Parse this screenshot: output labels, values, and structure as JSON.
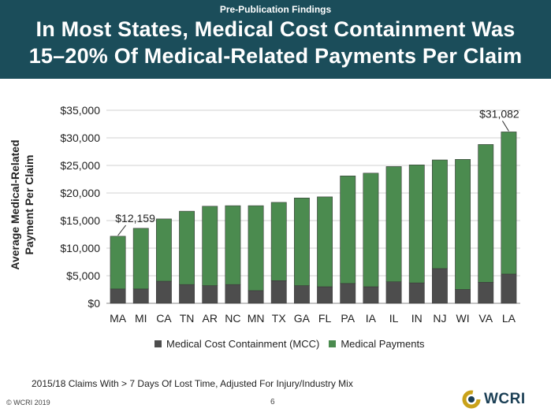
{
  "header": {
    "subtitle": "Pre-Publication Findings",
    "title_line1": "In Most States, Medical Cost Containment Was",
    "title_line2": "15–20% Of Medical-Related Payments Per Claim"
  },
  "colors": {
    "header_bg": "#1b4d5a",
    "mcc": "#4d4d4d",
    "medical": "#4b8b4f"
  },
  "chart_data": {
    "type": "bar",
    "stacked": true,
    "ylabel": "Average Medical-Related Payment Per Claim",
    "ylim": [
      0,
      35000
    ],
    "yticks": [
      "$0",
      "$5,000",
      "$10,000",
      "$15,000",
      "$20,000",
      "$25,000",
      "$30,000",
      "$35,000"
    ],
    "ytick_values": [
      0,
      5000,
      10000,
      15000,
      20000,
      25000,
      30000,
      35000
    ],
    "grid": true,
    "legend_position": "bottom",
    "categories": [
      "MA",
      "MI",
      "CA",
      "TN",
      "AR",
      "NC",
      "MN",
      "TX",
      "GA",
      "FL",
      "PA",
      "IA",
      "IL",
      "IN",
      "NJ",
      "WI",
      "VA",
      "LA"
    ],
    "series": [
      {
        "name": "Medical Cost Containment (MCC)",
        "values": [
          2600,
          2600,
          4000,
          3400,
          3200,
          3400,
          2300,
          4100,
          3200,
          3000,
          3600,
          3000,
          3900,
          3700,
          6300,
          2500,
          3800,
          5300
        ]
      },
      {
        "name": "Medical Payments",
        "values": [
          9559,
          11000,
          11300,
          13300,
          14400,
          14300,
          15400,
          14200,
          15900,
          16300,
          19500,
          20600,
          20900,
          21400,
          19700,
          23600,
          25000,
          25782
        ]
      }
    ],
    "annotations": [
      {
        "category": "MA",
        "text": "$12,159"
      },
      {
        "category": "LA",
        "text": "$31,082"
      }
    ]
  },
  "footnote": "2015/18 Claims With > 7 Days Of Lost Time, Adjusted For Injury/Industry Mix",
  "copyright": "© WCRI 2019",
  "page_number": "6",
  "logo": {
    "text": "WCRI",
    "icon": "wcri-logo-icon"
  }
}
